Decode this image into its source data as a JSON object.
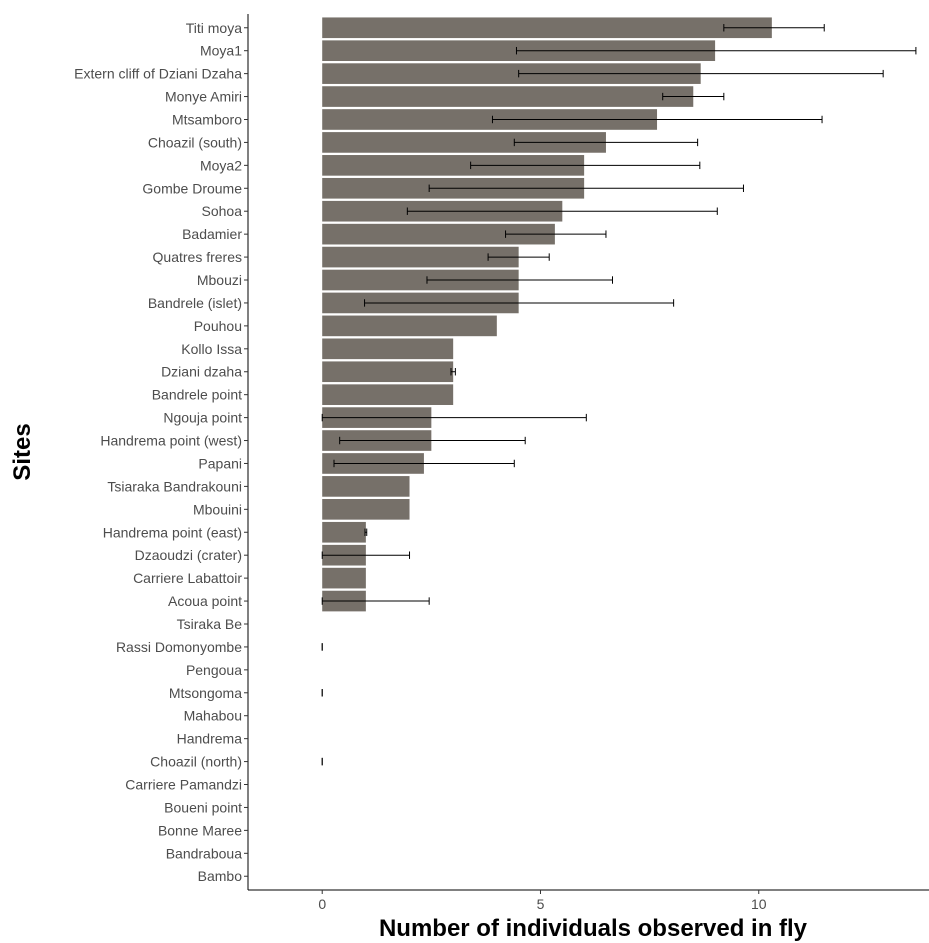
{
  "chart_data": {
    "type": "bar",
    "orientation": "horizontal",
    "xlabel": "Number of individuals observed in fly",
    "ylabel": "Sites",
    "xlim": [
      -1.7,
      13.9
    ],
    "x_ticks": [
      0,
      5,
      10
    ],
    "grid": false,
    "legend": "none",
    "bar_color": "#767069",
    "error_color": "#000000",
    "categories": [
      "Titi moya",
      "Moya1",
      "Extern cliff of Dziani Dzaha",
      "Monye Amiri",
      "Mtsamboro",
      "Choazil (south)",
      "Moya2",
      "Gombe Droume",
      "Sohoa",
      "Badamier",
      "Quatres freres",
      "Mbouzi",
      "Bandrele (islet)",
      "Pouhou",
      "Kollo Issa",
      "Dziani dzaha",
      "Bandrele point",
      "Ngouja point",
      "Handrema point (west)",
      "Papani",
      "Tsiaraka Bandrakouni",
      "Mbouini",
      "Handrema point (east)",
      "Dzaoudzi (crater)",
      "Carriere Labattoir",
      "Acoua point",
      "Tsiraka Be",
      "Rassi Domonyombe",
      "Pengoua",
      "Mtsongoma",
      "Mahabou",
      "Handrema",
      "Choazil (north)",
      "Carriere Pamandzi",
      "Boueni point",
      "Bonne Maree",
      "Bandraboua",
      "Bambo"
    ],
    "values": [
      10.3,
      9.0,
      8.67,
      8.5,
      7.67,
      6.5,
      6.0,
      6.0,
      5.5,
      5.33,
      4.5,
      4.5,
      4.5,
      4.0,
      3.0,
      3.0,
      3.0,
      2.5,
      2.5,
      2.33,
      2.0,
      2.0,
      1.0,
      1.0,
      1.0,
      1.0,
      0,
      0,
      0,
      0,
      0,
      0,
      0,
      0,
      0,
      0,
      0,
      0
    ],
    "error_low": [
      9.2,
      4.45,
      4.5,
      7.8,
      3.9,
      4.4,
      3.4,
      2.45,
      1.95,
      4.2,
      3.8,
      2.4,
      0.97,
      null,
      null,
      2.95,
      null,
      0,
      0.4,
      0.27,
      null,
      null,
      0.98,
      0,
      null,
      0,
      null,
      0,
      null,
      0,
      null,
      null,
      0,
      null,
      null,
      null,
      null,
      null
    ],
    "error_high": [
      11.5,
      13.6,
      12.85,
      9.2,
      11.45,
      8.6,
      8.65,
      9.65,
      9.05,
      6.5,
      5.2,
      6.65,
      8.05,
      null,
      null,
      3.05,
      null,
      6.05,
      4.65,
      4.4,
      null,
      null,
      1.02,
      2.0,
      null,
      2.45,
      null,
      0,
      null,
      0,
      null,
      null,
      0,
      null,
      null,
      null,
      null,
      null
    ]
  }
}
